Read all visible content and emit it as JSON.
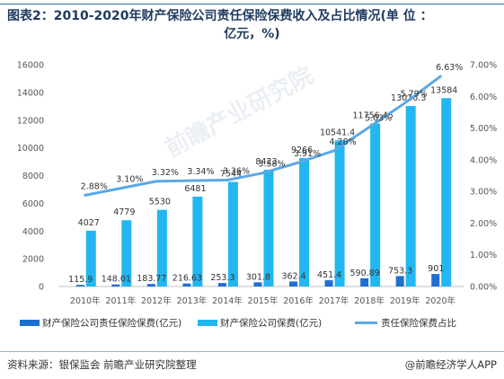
{
  "title": {
    "line1": "图表2：2010-2020年财产保险公司责任保险保费收入及占比情况(单 位 ：",
    "line2": "亿元，%)"
  },
  "footer": {
    "source": "资料来源：银保监会 前瞻产业研究院整理",
    "brand": "@前瞻经济学人APP"
  },
  "watermark": "前瞻产业研究院",
  "colors": {
    "liability_bar": "#1f6fd1",
    "total_bar": "#22b7f0",
    "share_line": "#5aa8e6",
    "title": "#1f3a5f"
  },
  "chart_data": {
    "type": "bar",
    "categories": [
      "2010年",
      "2011年",
      "2012年",
      "2013年",
      "2014年",
      "2015年",
      "2016年",
      "2017年",
      "2018年",
      "2019年",
      "2020年"
    ],
    "series": [
      {
        "name": "财产保险公司责任保险保费(亿元)",
        "kind": "bar",
        "axis": "left",
        "values": [
          115.9,
          148.01,
          183.77,
          216.63,
          253.3,
          301.8,
          362.4,
          451.4,
          590.89,
          753.3,
          901
        ],
        "labels": [
          "115.9",
          "148.01",
          "183.77",
          "216.63",
          "253.3",
          "301.8",
          "362.4",
          "451.4",
          "590.89",
          "753.3",
          "901"
        ]
      },
      {
        "name": "财产保险公司保费(亿元)",
        "kind": "bar",
        "axis": "left",
        "values": [
          4027,
          4779,
          5530,
          6481,
          7544,
          8423,
          9266,
          10541.4,
          11756.45,
          13016.3,
          13584
        ],
        "labels": [
          "4027",
          "4779",
          "5530",
          "6481",
          "7544",
          "8423",
          "9266",
          "10541.4",
          "11756.45",
          "13016.3",
          "13584"
        ]
      },
      {
        "name": "责任保险保费占比",
        "kind": "line",
        "axis": "right",
        "values": [
          2.88,
          3.1,
          3.32,
          3.34,
          3.36,
          3.58,
          3.91,
          4.28,
          5.03,
          5.79,
          6.63
        ],
        "labels": [
          "2.88%",
          "3.10%",
          "3.32%",
          "3.34%",
          "3.36%",
          "3.58%",
          "3.91%",
          "4.28%",
          "5.03%",
          "5.79%",
          "6.63%"
        ]
      }
    ],
    "y_left": {
      "ylim": [
        0,
        16000
      ],
      "ticks": [
        "0",
        "2000",
        "4000",
        "6000",
        "8000",
        "10000",
        "12000",
        "14000",
        "16000"
      ]
    },
    "y_right": {
      "ylim": [
        0,
        7
      ],
      "ticks": [
        "0.00%",
        "1.00%",
        "2.00%",
        "3.00%",
        "4.00%",
        "5.00%",
        "6.00%",
        "7.00%"
      ]
    },
    "grid": false,
    "legend_position": "bottom"
  }
}
